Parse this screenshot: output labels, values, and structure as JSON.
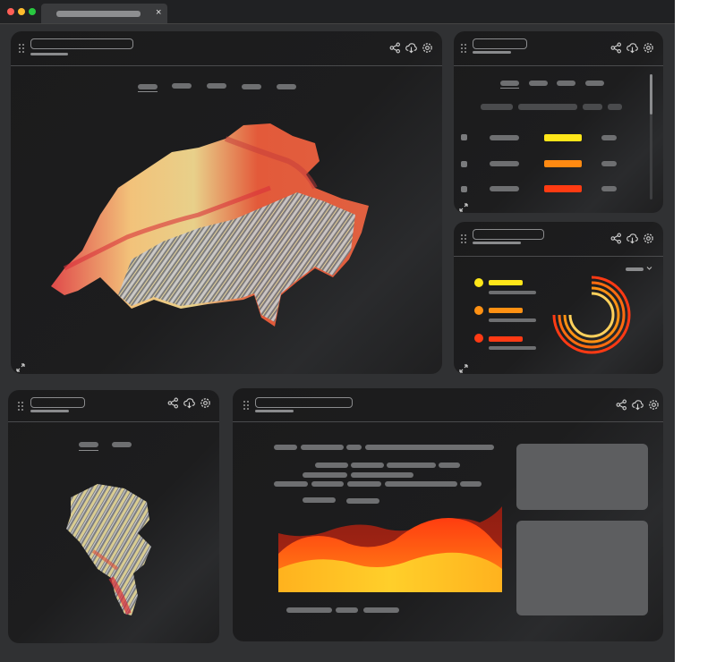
{
  "tab": {
    "close": "×"
  },
  "colors": {
    "yellow": "#ffe619",
    "orange": "#ff8a12",
    "red": "#ff3b12",
    "window": "#303133",
    "panel": "#1d1d1e"
  },
  "icons": [
    "share-icon",
    "download-icon",
    "gear-icon",
    "grip-icon",
    "expand-icon"
  ],
  "legend": [
    {
      "color": "#ffe619"
    },
    {
      "color": "#ff9113"
    },
    {
      "color": "#ff3a14"
    }
  ],
  "table_rows": [
    {
      "bar_color": "#ffe619"
    },
    {
      "bar_color": "#ff8a12"
    },
    {
      "bar_color": "#ff3b12"
    }
  ]
}
